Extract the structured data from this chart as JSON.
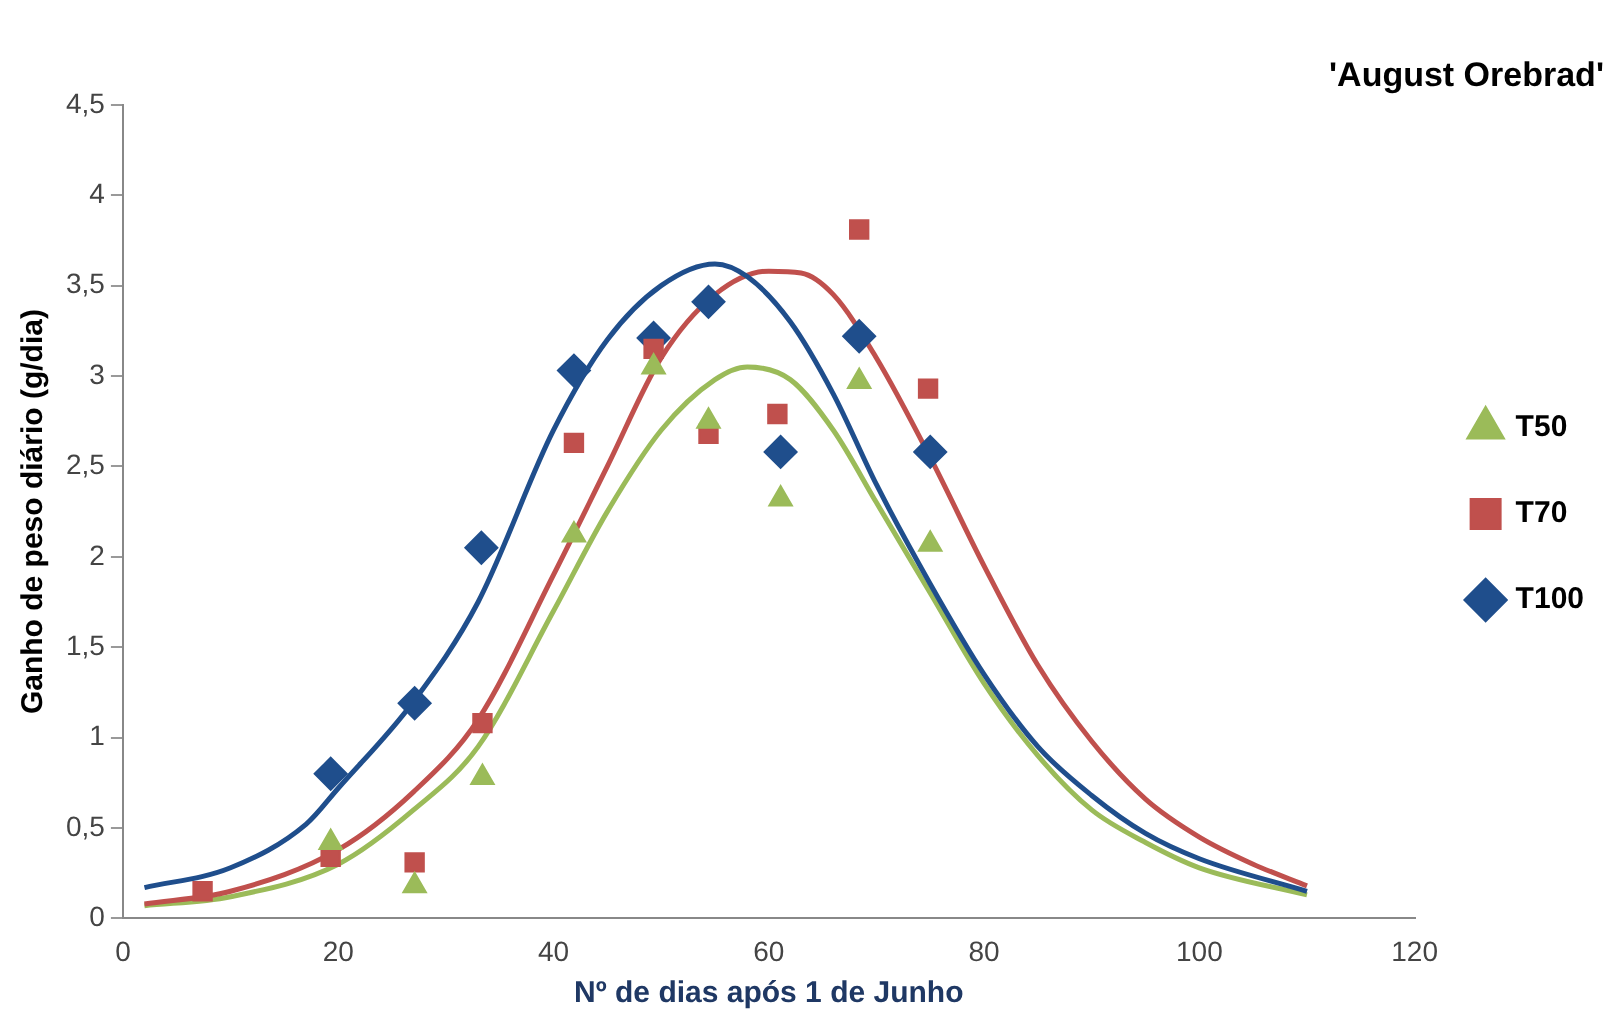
{
  "chart_data": {
    "type": "scatter",
    "title": "'August Orebrad'",
    "xlabel": "Nº de dias após 1 de Junho",
    "ylabel": "Ganho de peso diário (g/dia)",
    "xlim": [
      0,
      120
    ],
    "xticks": [
      0,
      20,
      40,
      60,
      80,
      100,
      120
    ],
    "ylim": [
      0,
      4.5
    ],
    "yticks": [
      0,
      {
        "value": 0.5,
        "label": "0,5"
      },
      1,
      {
        "value": 1.5,
        "label": "1,5"
      },
      2,
      {
        "value": 2.5,
        "label": "2,5"
      },
      3,
      {
        "value": 3.5,
        "label": "3,5"
      },
      4,
      {
        "value": 4.5,
        "label": "4,5"
      }
    ],
    "grid": false,
    "legend": "right",
    "series": [
      {
        "type": "line",
        "marker": "none",
        "color": "#1f4e8c",
        "x": [
          2,
          10,
          17,
          20,
          27,
          33,
          40,
          45,
          50,
          55,
          58,
          62,
          66,
          70,
          75,
          80,
          85,
          90,
          95,
          100,
          110
        ],
        "values": [
          0.17,
          0.28,
          0.52,
          0.72,
          1.2,
          1.75,
          2.7,
          3.2,
          3.5,
          3.62,
          3.55,
          3.3,
          2.9,
          2.4,
          1.85,
          1.35,
          0.95,
          0.68,
          0.47,
          0.33,
          0.15
        ]
      },
      {
        "type": "line",
        "marker": "none",
        "color": "#c0504d",
        "x": [
          2,
          10,
          20,
          27,
          33,
          40,
          45,
          50,
          55,
          60,
          63,
          66,
          70,
          75,
          80,
          85,
          90,
          95,
          100,
          105,
          110
        ],
        "values": [
          0.08,
          0.15,
          0.38,
          0.7,
          1.1,
          1.9,
          2.5,
          3.1,
          3.45,
          3.58,
          3.57,
          3.45,
          3.1,
          2.55,
          1.95,
          1.4,
          0.98,
          0.66,
          0.45,
          0.3,
          0.18
        ]
      },
      {
        "type": "line",
        "marker": "none",
        "color": "#9bbb59",
        "x": [
          2,
          10,
          20,
          27,
          33,
          40,
          45,
          50,
          55,
          58,
          62,
          66,
          70,
          75,
          80,
          85,
          90,
          95,
          100,
          110
        ],
        "values": [
          0.07,
          0.12,
          0.3,
          0.6,
          0.95,
          1.7,
          2.25,
          2.7,
          2.98,
          3.05,
          2.98,
          2.7,
          2.3,
          1.8,
          1.3,
          0.9,
          0.6,
          0.42,
          0.28,
          0.13
        ]
      },
      {
        "type": "scatter",
        "name": "T100",
        "marker": "diamond",
        "color": "#1f4e8c",
        "x": [
          19.3,
          27.1,
          33.3,
          41.9,
          49.3,
          54.4,
          61.1,
          68.4,
          75
        ],
        "values": [
          0.8,
          1.19,
          2.05,
          3.03,
          3.21,
          3.41,
          2.58,
          3.22,
          2.58
        ]
      },
      {
        "type": "scatter",
        "name": "T70",
        "marker": "square",
        "color": "#c0504d",
        "x": [
          7.4,
          19.3,
          27.1,
          33.4,
          41.9,
          49.3,
          54.4,
          60.8,
          68.4,
          74.8
        ],
        "values": [
          0.15,
          0.34,
          0.31,
          1.08,
          2.63,
          3.15,
          2.68,
          2.79,
          3.81,
          2.93
        ]
      },
      {
        "type": "scatter",
        "name": "T50",
        "marker": "triangle",
        "color": "#9bbb59",
        "x": [
          19.3,
          27.1,
          33.4,
          41.9,
          49.3,
          54.4,
          61.1,
          68.4,
          75
        ],
        "values": [
          0.42,
          0.18,
          0.78,
          2.12,
          3.05,
          2.75,
          2.32,
          2.97,
          2.07
        ]
      }
    ]
  }
}
